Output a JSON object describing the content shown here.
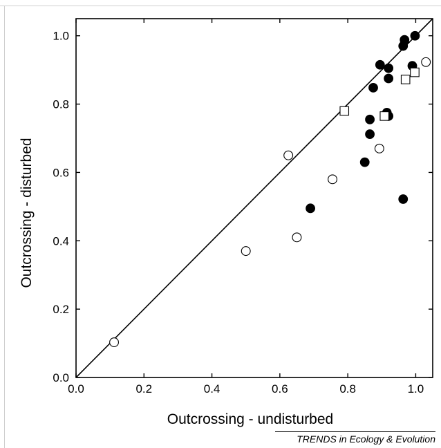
{
  "chart_data": {
    "type": "scatter",
    "title": "",
    "xlabel": "Outcrossing - undisturbed",
    "ylabel": "Outcrossing - disturbed",
    "xlim": [
      0.0,
      1.05
    ],
    "ylim": [
      0.0,
      1.05
    ],
    "xticks": [
      "0.0",
      "0.2",
      "0.4",
      "0.6",
      "0.8",
      "1.0"
    ],
    "yticks": [
      "0.0",
      "0.2",
      "0.4",
      "0.6",
      "0.8",
      "1.0"
    ],
    "reference_line": "y = x",
    "grid": false,
    "series": [
      {
        "marker": "filled-circle",
        "color": "#000000",
        "points": [
          {
            "x": 0.69,
            "y": 0.495
          },
          {
            "x": 0.85,
            "y": 0.63
          },
          {
            "x": 0.865,
            "y": 0.712
          },
          {
            "x": 0.865,
            "y": 0.755
          },
          {
            "x": 0.875,
            "y": 0.848
          },
          {
            "x": 0.895,
            "y": 0.915
          },
          {
            "x": 0.915,
            "y": 0.775
          },
          {
            "x": 0.92,
            "y": 0.765
          },
          {
            "x": 0.92,
            "y": 0.875
          },
          {
            "x": 0.92,
            "y": 0.905
          },
          {
            "x": 0.963,
            "y": 0.522
          },
          {
            "x": 0.963,
            "y": 0.97
          },
          {
            "x": 0.967,
            "y": 0.988
          },
          {
            "x": 0.99,
            "y": 0.912
          },
          {
            "x": 0.998,
            "y": 1.0
          }
        ]
      },
      {
        "marker": "open-circle",
        "color": "#000000",
        "points": [
          {
            "x": 0.112,
            "y": 0.103
          },
          {
            "x": 0.5,
            "y": 0.37
          },
          {
            "x": 0.625,
            "y": 0.65
          },
          {
            "x": 0.65,
            "y": 0.41
          },
          {
            "x": 0.755,
            "y": 0.58
          },
          {
            "x": 0.893,
            "y": 0.67
          },
          {
            "x": 1.03,
            "y": 0.923
          }
        ]
      },
      {
        "marker": "open-square",
        "color": "#000000",
        "points": [
          {
            "x": 0.79,
            "y": 0.78
          },
          {
            "x": 0.908,
            "y": 0.765
          },
          {
            "x": 0.97,
            "y": 0.872
          },
          {
            "x": 0.997,
            "y": 0.893
          }
        ]
      }
    ]
  },
  "credit": "TRENDS in Ecology & Evolution"
}
